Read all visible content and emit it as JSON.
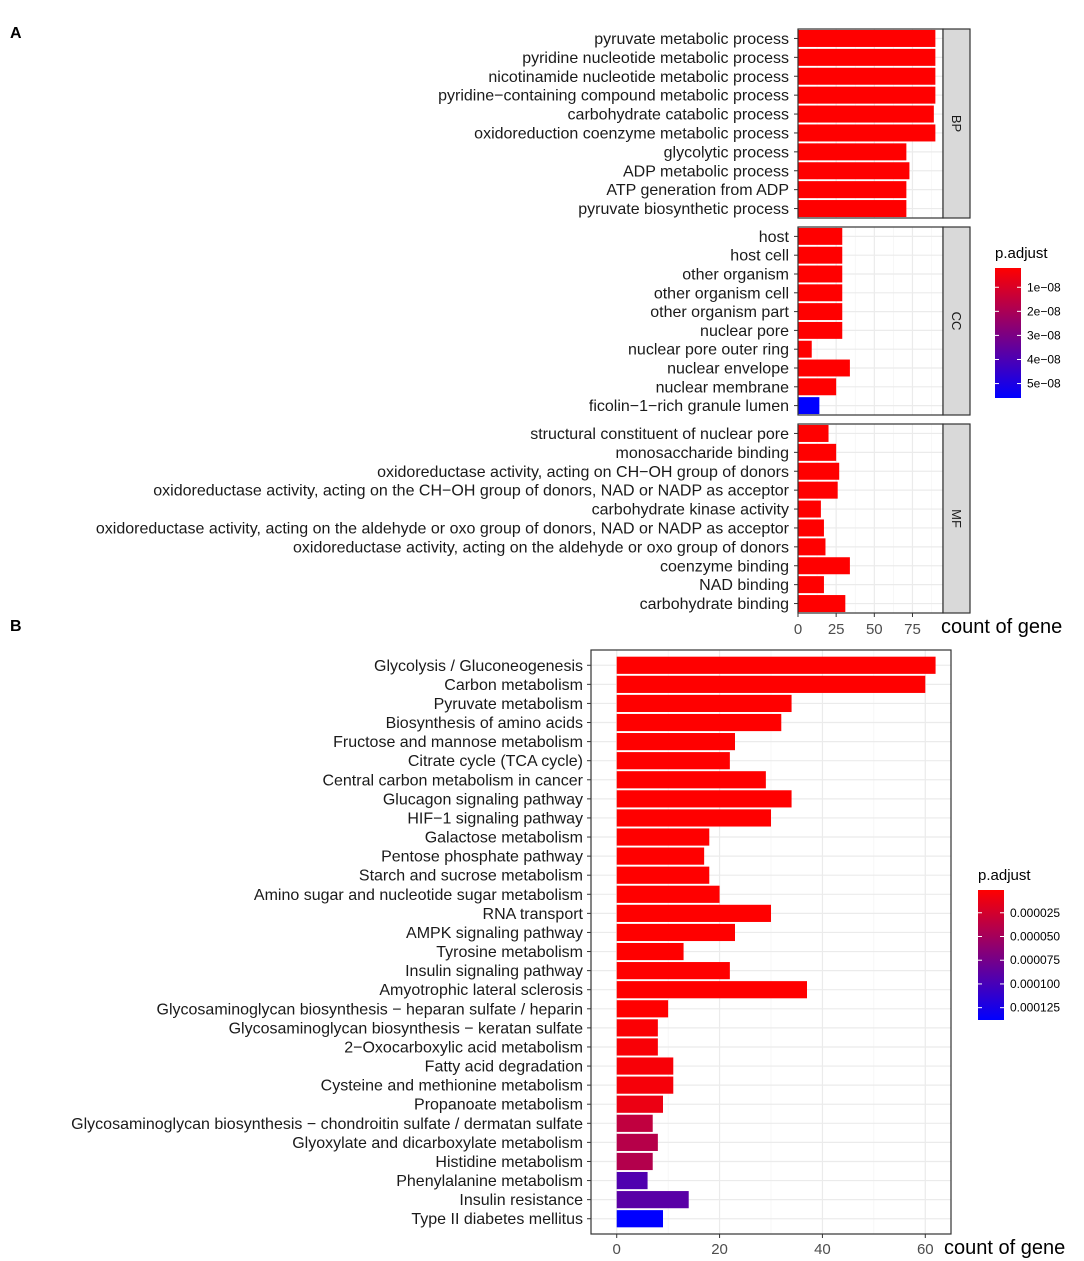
{
  "colors": {
    "low": "#ff0000",
    "high": "#0000ff",
    "panel_border": "#333333",
    "grid": "#ebebeb",
    "strip_fill": "#d9d9d9"
  },
  "chart_data": [
    {
      "panel_label": "A",
      "type": "bar",
      "orientation": "horizontal",
      "xlabel": "count of gene",
      "xlim": [
        0,
        95
      ],
      "xticks": [
        0,
        25,
        50,
        75
      ],
      "xtick_labels": [
        "0",
        "25",
        "50",
        "75"
      ],
      "legend": {
        "title": "p.adjust",
        "range": [
          2e-09,
          5.6e-08
        ],
        "ticks": [
          1e-08,
          2e-08,
          3e-08,
          4e-08,
          5e-08
        ],
        "tick_labels": [
          "1e−08",
          "2e−08",
          "3e−08",
          "4e−08",
          "5e−08"
        ],
        "placement": "right"
      },
      "facets": [
        {
          "name": "BP",
          "categories": [
            "pyruvate metabolic process",
            "pyridine nucleotide metabolic process",
            "nicotinamide nucleotide metabolic process",
            "pyridine−containing compound metabolic process",
            "carbohydrate catabolic process",
            "oxidoreduction coenzyme metabolic process",
            "glycolytic process",
            "ADP metabolic process",
            "ATP generation from ADP",
            "pyruvate biosynthetic process"
          ],
          "values": [
            90,
            90,
            90,
            90,
            89,
            90,
            71,
            73,
            71,
            71
          ],
          "p_adjust": [
            2e-09,
            2e-09,
            2e-09,
            2e-09,
            2e-09,
            2e-09,
            2e-09,
            2e-09,
            2e-09,
            2e-09
          ]
        },
        {
          "name": "CC",
          "categories": [
            "host",
            "host cell",
            "other organism",
            "other organism cell",
            "other organism part",
            "nuclear pore",
            "nuclear pore outer ring",
            "nuclear envelope",
            "nuclear membrane",
            "ficolin−1−rich granule lumen"
          ],
          "values": [
            29,
            29,
            29,
            29,
            29,
            29,
            9,
            34,
            25,
            14
          ],
          "p_adjust": [
            2e-09,
            2e-09,
            2e-09,
            2e-09,
            2e-09,
            2e-09,
            2e-09,
            2e-09,
            2e-09,
            5.6e-08
          ]
        },
        {
          "name": "MF",
          "categories": [
            "structural constituent of nuclear pore",
            "monosaccharide binding",
            "oxidoreductase activity, acting on CH−OH group of donors",
            "oxidoreductase activity, acting on the CH−OH group of donors, NAD or NADP as acceptor",
            "carbohydrate kinase activity",
            "oxidoreductase activity, acting on the aldehyde or oxo group of donors, NAD or NADP as acceptor",
            "oxidoreductase activity, acting on the aldehyde or oxo group of donors",
            "coenzyme binding",
            "NAD binding",
            "carbohydrate binding"
          ],
          "values": [
            20,
            25,
            27,
            26,
            15,
            17,
            18,
            34,
            17,
            31
          ],
          "p_adjust": [
            2e-09,
            2e-09,
            2e-09,
            2e-09,
            2e-09,
            2e-09,
            2e-09,
            2e-09,
            2e-09,
            2e-09
          ]
        }
      ]
    },
    {
      "panel_label": "B",
      "type": "bar",
      "orientation": "horizontal",
      "xlabel": "count of gene",
      "xlim": [
        -5,
        65
      ],
      "xticks": [
        0,
        20,
        40,
        60
      ],
      "xtick_labels": [
        "0",
        "20",
        "40",
        "60"
      ],
      "legend": {
        "title": "p.adjust",
        "range": [
          1e-06,
          0.000138
        ],
        "ticks": [
          2.5e-05,
          5e-05,
          7.5e-05,
          0.0001,
          0.000125
        ],
        "tick_labels": [
          "0.000025",
          "0.000050",
          "0.000075",
          "0.000100",
          "0.000125"
        ],
        "placement": "right"
      },
      "categories": [
        "Glycolysis / Gluconeogenesis",
        "Carbon metabolism",
        "Pyruvate metabolism",
        "Biosynthesis of amino acids",
        "Fructose and mannose metabolism",
        "Citrate cycle (TCA cycle)",
        "Central carbon metabolism in cancer",
        "Glucagon signaling pathway",
        "HIF−1 signaling pathway",
        "Galactose metabolism",
        "Pentose phosphate pathway",
        "Starch and sucrose metabolism",
        "Amino sugar and nucleotide sugar metabolism",
        "RNA transport",
        "AMPK signaling pathway",
        "Tyrosine metabolism",
        "Insulin signaling pathway",
        "Amyotrophic lateral sclerosis",
        "Glycosaminoglycan biosynthesis − heparan sulfate / heparin",
        "Glycosaminoglycan biosynthesis − keratan sulfate",
        "2−Oxocarboxylic acid metabolism",
        "Fatty acid degradation",
        "Cysteine and methionine metabolism",
        "Propanoate metabolism",
        "Glycosaminoglycan biosynthesis − chondroitin sulfate / dermatan sulfate",
        "Glyoxylate and dicarboxylate metabolism",
        "Histidine metabolism",
        "Phenylalanine metabolism",
        "Insulin resistance",
        "Type II diabetes mellitus"
      ],
      "values": [
        62,
        60,
        34,
        32,
        23,
        22,
        29,
        34,
        30,
        18,
        17,
        18,
        20,
        30,
        23,
        13,
        22,
        37,
        10,
        8,
        8,
        11,
        11,
        9,
        7,
        8,
        7,
        6,
        14,
        9
      ],
      "p_adjust": [
        1e-06,
        1e-06,
        1e-06,
        1e-06,
        1e-06,
        1e-06,
        1e-06,
        1e-06,
        1e-06,
        1e-06,
        1e-06,
        1e-06,
        1e-06,
        1e-06,
        1e-06,
        1e-06,
        1e-06,
        1e-06,
        1e-06,
        3e-06,
        4e-06,
        5e-06,
        6e-06,
        1.1e-05,
        3.5e-05,
        4e-05,
        4.2e-05,
        9.5e-05,
        9e-05,
        0.000138
      ]
    }
  ]
}
